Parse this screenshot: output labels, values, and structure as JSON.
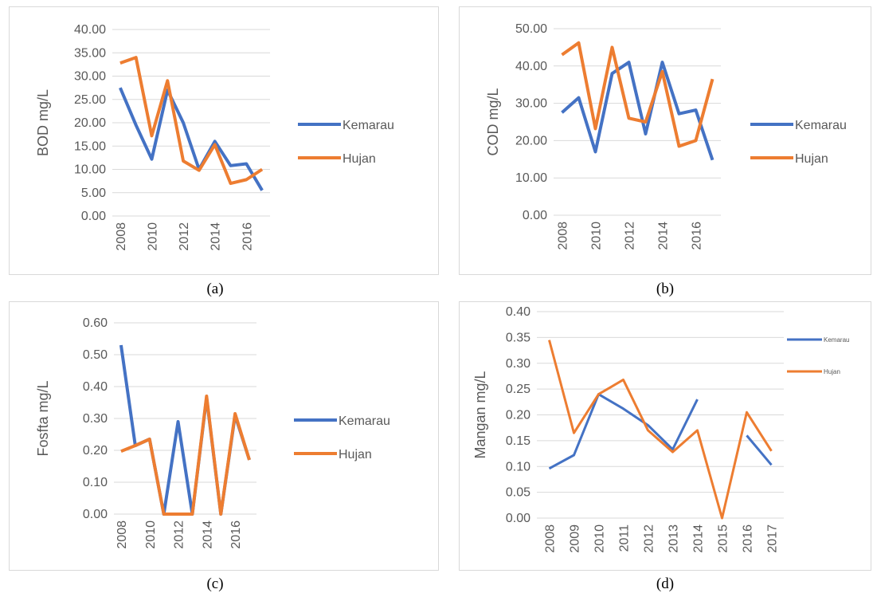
{
  "colors": {
    "kemarau": "#4472c4",
    "hujan": "#ed7d31",
    "grid": "#d9d9d9",
    "text": "#595959"
  },
  "chart_data": [
    {
      "type": "line",
      "caption": "(a)",
      "ylabel": "BOD mg/L",
      "ylim": [
        0,
        40
      ],
      "yticks": [
        "0.00",
        "5.00",
        "10.00",
        "15.00",
        "20.00",
        "25.00",
        "30.00",
        "35.00",
        "40.00"
      ],
      "x": [
        2008,
        2009,
        2010,
        2011,
        2012,
        2013,
        2014,
        2015,
        2016,
        2017
      ],
      "xtick_labels": [
        "2008",
        "2010",
        "2012",
        "2014",
        "2016"
      ],
      "xtick_indices": [
        0,
        2,
        4,
        6,
        8
      ],
      "legend": "right",
      "grid": true,
      "series": [
        {
          "name": "Kemarau",
          "key": "kemarau",
          "values": [
            27.5,
            19.5,
            12.2,
            27.0,
            20.0,
            10.0,
            16.0,
            10.8,
            11.2,
            5.5
          ]
        },
        {
          "name": "Hujan",
          "key": "hujan",
          "values": [
            32.8,
            34.0,
            17.2,
            29.0,
            11.8,
            9.8,
            15.3,
            7.0,
            7.8,
            10.0
          ]
        }
      ]
    },
    {
      "type": "line",
      "caption": "(b)",
      "ylabel": "COD mg/L",
      "ylim": [
        0,
        50
      ],
      "yticks": [
        "0.00",
        "10.00",
        "20.00",
        "30.00",
        "40.00",
        "50.00"
      ],
      "x": [
        2008,
        2009,
        2010,
        2011,
        2012,
        2013,
        2014,
        2015,
        2016,
        2017
      ],
      "xtick_labels": [
        "2008",
        "2010",
        "2012",
        "2014",
        "2016"
      ],
      "xtick_indices": [
        0,
        2,
        4,
        6,
        8
      ],
      "legend": "right",
      "grid": true,
      "series": [
        {
          "name": "Kemarau",
          "key": "kemarau",
          "values": [
            27.5,
            31.5,
            17.0,
            38.0,
            41.0,
            21.8,
            41.0,
            27.2,
            28.2,
            14.8
          ]
        },
        {
          "name": "Hujan",
          "key": "hujan",
          "values": [
            43.0,
            46.2,
            23.2,
            45.0,
            26.0,
            25.0,
            38.5,
            18.5,
            20.0,
            36.5
          ]
        }
      ]
    },
    {
      "type": "line",
      "caption": "(c)",
      "ylabel": "Fosfta mg/L",
      "ylim": [
        0,
        0.6
      ],
      "yticks": [
        "0.00",
        "0.10",
        "0.20",
        "0.30",
        "0.40",
        "0.50",
        "0.60"
      ],
      "x": [
        2008,
        2009,
        2010,
        2011,
        2012,
        2013,
        2014,
        2015,
        2016,
        2017
      ],
      "xtick_labels": [
        "2008",
        "2010",
        "2012",
        "2014",
        "2016"
      ],
      "xtick_indices": [
        0,
        2,
        4,
        6,
        8
      ],
      "legend": "right",
      "grid": true,
      "series": [
        {
          "name": "Kemarau",
          "key": "kemarau",
          "values": [
            0.53,
            0.215,
            0.235,
            0.0,
            0.29,
            0.0,
            0.365,
            0.0,
            0.31,
            0.17
          ]
        },
        {
          "name": "Hujan",
          "key": "hujan",
          "values": [
            0.197,
            0.215,
            0.235,
            0.0,
            0.0,
            0.0,
            0.37,
            0.0,
            0.315,
            0.17
          ]
        }
      ]
    },
    {
      "type": "line",
      "caption": "(d)",
      "ylabel": "Mangan mg/L",
      "ylim": [
        0,
        0.4
      ],
      "yticks": [
        "0.00",
        "0.05",
        "0.10",
        "0.15",
        "0.20",
        "0.25",
        "0.30",
        "0.35",
        "0.40"
      ],
      "x": [
        2008,
        2009,
        2010,
        2011,
        2012,
        2013,
        2014,
        2015,
        2016,
        2017
      ],
      "xtick_labels": [
        "2008",
        "2009",
        "2010",
        "2011",
        "2012",
        "2013",
        "2014",
        "2015",
        "2016",
        "2017"
      ],
      "xtick_indices": [
        0,
        1,
        2,
        3,
        4,
        5,
        6,
        7,
        8,
        9
      ],
      "legend": "top-right",
      "grid": true,
      "series": [
        {
          "name": "Kemarau",
          "key": "kemarau",
          "values": [
            0.096,
            0.122,
            0.24,
            0.212,
            0.18,
            0.133,
            0.23,
            null,
            0.16,
            0.103
          ]
        },
        {
          "name": "Hujan",
          "key": "hujan",
          "values": [
            0.345,
            0.165,
            0.24,
            0.268,
            0.17,
            0.128,
            0.17,
            0.0,
            0.205,
            0.13
          ]
        }
      ]
    }
  ]
}
